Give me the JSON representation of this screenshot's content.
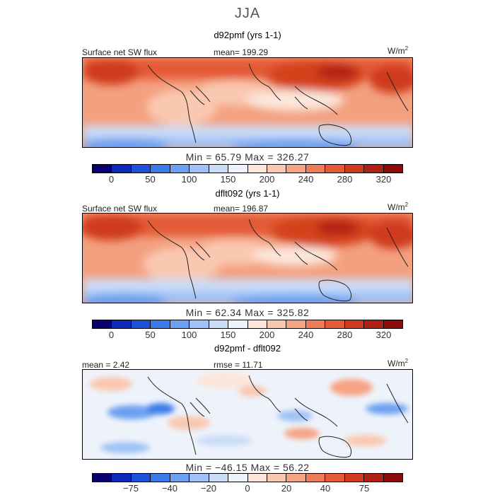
{
  "season": "JJA",
  "panels": [
    {
      "title": "d92pmf (yrs 1-1)",
      "left_label": "Surface net SW flux",
      "stat_label": "mean= 199.29",
      "units_base": "W/m",
      "units_sup": "2",
      "minmax": "Min =  65.79  Max =  326.27",
      "colorbar_ticks": [
        "0",
        "50",
        "100",
        "150",
        "200",
        "240",
        "280",
        "320"
      ]
    },
    {
      "title": "dflt092 (yrs 1-1)",
      "left_label": "Surface net SW flux",
      "stat_label": "mean= 196.87",
      "units_base": "W/m",
      "units_sup": "2",
      "minmax": "Min =  62.34  Max =  325.82",
      "colorbar_ticks": [
        "0",
        "50",
        "100",
        "150",
        "200",
        "240",
        "280",
        "320"
      ]
    },
    {
      "title": "d92pmf - dflt092",
      "left_label": "mean =   2.42",
      "stat_label": "rmse =   11.71",
      "units_base": "W/m",
      "units_sup": "2",
      "minmax": "Min = −46.15  Max =   56.22",
      "colorbar_ticks": [
        "−75",
        "−40",
        "−20",
        "0",
        "20",
        "40",
        "75"
      ]
    }
  ],
  "colors": {
    "sequential": [
      "#08006e",
      "#0b2ab8",
      "#1c52d8",
      "#3b7ae8",
      "#6ca0f0",
      "#9fc1f5",
      "#cbdcf7",
      "#eef3fb",
      "#fce6da",
      "#fac8b0",
      "#f6a384",
      "#ef7c58",
      "#e45a36",
      "#cf3a1f",
      "#b02012",
      "#8a0c08"
    ],
    "diverging": [
      "#08006e",
      "#0b2ab8",
      "#1c52d8",
      "#3b7ae8",
      "#6ca0f0",
      "#9fc1f5",
      "#cbdcf7",
      "#eef3fb",
      "#fce6da",
      "#fac8b0",
      "#f6a384",
      "#ef7c58",
      "#e45a36",
      "#cf3a1f",
      "#b02012",
      "#8a0c08"
    ],
    "land_outline": "#222222"
  }
}
